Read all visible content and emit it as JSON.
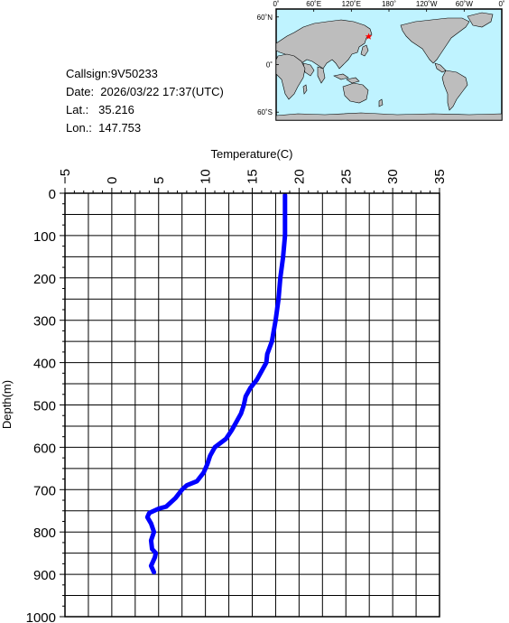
{
  "info": {
    "callsign": "Callsign:9V50233",
    "date": "Date:  2026/03/22 17:37(UTC)",
    "lat": "Lat.:   35.216",
    "lon": "Lon.:  147.753"
  },
  "map": {
    "top_labels": [
      "0˚",
      "60˚E",
      "120˚E",
      "180˚",
      "120˚W",
      "60˚W",
      "0˚"
    ],
    "left_labels": [
      "60˚N",
      "0˚",
      "60˚S"
    ],
    "ocean_color": "#bff3ff",
    "land_color": "#bdbdbd",
    "marker": {
      "lat": 35.216,
      "lon": 147.753,
      "color": "#ff0000",
      "icon": "star-icon"
    }
  },
  "chart_data": {
    "type": "line",
    "xlabel": "Temperature(C)",
    "ylabel": "Depth(m)",
    "xlim": [
      -5,
      35
    ],
    "ylim": [
      0,
      1000
    ],
    "y_inverted": true,
    "x_ticks": [
      "−5",
      "0",
      "5",
      "10",
      "15",
      "20",
      "25",
      "30",
      "35"
    ],
    "y_ticks": [
      "0",
      "100",
      "200",
      "300",
      "400",
      "500",
      "600",
      "700",
      "800",
      "900",
      "1000"
    ],
    "grid": true,
    "series": [
      {
        "color": "#0000ff",
        "points": [
          [
            18.5,
            5
          ],
          [
            18.5,
            50
          ],
          [
            18.5,
            100
          ],
          [
            18.3,
            150
          ],
          [
            18.0,
            200
          ],
          [
            17.8,
            250
          ],
          [
            17.5,
            300
          ],
          [
            17.1,
            350
          ],
          [
            16.6,
            380
          ],
          [
            16.5,
            400
          ],
          [
            16.0,
            420
          ],
          [
            15.5,
            440
          ],
          [
            14.8,
            460
          ],
          [
            14.3,
            480
          ],
          [
            14.1,
            500
          ],
          [
            13.8,
            520
          ],
          [
            13.3,
            540
          ],
          [
            12.8,
            560
          ],
          [
            12.2,
            580
          ],
          [
            11.0,
            600
          ],
          [
            10.5,
            620
          ],
          [
            10.2,
            640
          ],
          [
            9.8,
            660
          ],
          [
            9.1,
            680
          ],
          [
            8.0,
            690
          ],
          [
            7.5,
            700
          ],
          [
            6.8,
            720
          ],
          [
            5.8,
            740
          ],
          [
            5.0,
            745
          ],
          [
            4.0,
            755
          ],
          [
            3.8,
            765
          ],
          [
            4.2,
            780
          ],
          [
            4.5,
            800
          ],
          [
            4.2,
            820
          ],
          [
            4.3,
            840
          ],
          [
            4.7,
            850
          ],
          [
            4.6,
            860
          ],
          [
            4.2,
            880
          ],
          [
            4.5,
            895
          ]
        ]
      }
    ]
  }
}
